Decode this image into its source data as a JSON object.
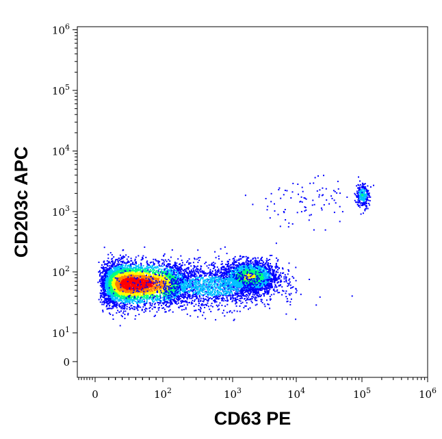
{
  "chart_data": {
    "type": "scatter",
    "title": "",
    "xlabel": "CD63 PE",
    "ylabel": "CD203c APC",
    "x_scale": "biexponential",
    "y_scale": "biexponential",
    "xlim": [
      -100,
      1000000
    ],
    "ylim": [
      -5,
      1000000
    ],
    "x_ticks": [
      {
        "value": 0,
        "base": "0",
        "exp": ""
      },
      {
        "value": 100,
        "base": "10",
        "exp": "2"
      },
      {
        "value": 1000,
        "base": "10",
        "exp": "3"
      },
      {
        "value": 10000,
        "base": "10",
        "exp": "4"
      },
      {
        "value": 100000,
        "base": "10",
        "exp": "5"
      },
      {
        "value": 1000000,
        "base": "10",
        "exp": "6"
      }
    ],
    "y_ticks": [
      {
        "value": 0,
        "base": "0",
        "exp": ""
      },
      {
        "value": 10,
        "base": "10",
        "exp": "1"
      },
      {
        "value": 100,
        "base": "10",
        "exp": "2"
      },
      {
        "value": 1000,
        "base": "10",
        "exp": "3"
      },
      {
        "value": 10000,
        "base": "10",
        "exp": "4"
      },
      {
        "value": 100000,
        "base": "10",
        "exp": "5"
      },
      {
        "value": 1000000,
        "base": "10",
        "exp": "6"
      }
    ],
    "grid": false,
    "legend": "none",
    "color_scale": [
      "#0000ff",
      "#00c0ff",
      "#00ff80",
      "#ffff00",
      "#ff8000",
      "#ff0000"
    ],
    "populations": [
      {
        "center": [
          55,
          65
        ],
        "spread": [
          0.32,
          0.17
        ],
        "count": 5200,
        "peak": 1.0
      },
      {
        "center": [
          1800,
          85
        ],
        "spread": [
          0.22,
          0.13
        ],
        "count": 2200,
        "peak": 0.55
      },
      {
        "center": [
          500,
          60
        ],
        "spread": [
          0.5,
          0.18
        ],
        "count": 1600,
        "peak": 0.25
      },
      {
        "center": [
          100000,
          1900
        ],
        "spread": [
          0.05,
          0.1
        ],
        "count": 260,
        "peak": 0.35
      },
      {
        "center": [
          12000,
          1500
        ],
        "spread": [
          0.45,
          0.2
        ],
        "count": 90,
        "peak": 0.05
      }
    ]
  }
}
